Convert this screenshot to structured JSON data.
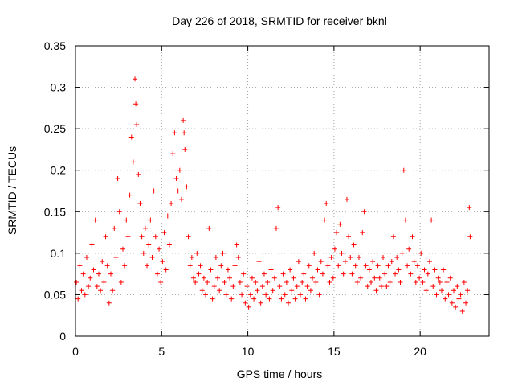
{
  "chart_data": {
    "type": "scatter",
    "title": "Day 226 of 2018, SRMTID for receiver bknl",
    "xlabel": "GPS time / hours",
    "ylabel": "SRMTID / TECUs",
    "xlim": [
      0,
      24
    ],
    "ylim": [
      0,
      0.35
    ],
    "xticks": [
      0,
      5,
      10,
      15,
      20
    ],
    "xtick_labels": [
      "0",
      "5",
      "10",
      "15",
      "20"
    ],
    "yticks": [
      0,
      0.05,
      0.1,
      0.15,
      0.2,
      0.25,
      0.3,
      0.35
    ],
    "ytick_labels": [
      "0",
      "0.05",
      "0.1",
      "0.15",
      "0.2",
      "0.25",
      "0.3",
      "0.35"
    ],
    "grid": true,
    "marker": "+",
    "marker_color": "#ff0000",
    "series": [
      {
        "name": "SRMTID",
        "points": [
          [
            0.05,
            0.065
          ],
          [
            0.15,
            0.045
          ],
          [
            0.25,
            0.085
          ],
          [
            0.35,
            0.055
          ],
          [
            0.45,
            0.075
          ],
          [
            0.55,
            0.05
          ],
          [
            0.65,
            0.095
          ],
          [
            0.75,
            0.06
          ],
          [
            0.85,
            0.07
          ],
          [
            0.95,
            0.11
          ],
          [
            1.05,
            0.08
          ],
          [
            1.15,
            0.14
          ],
          [
            1.25,
            0.06
          ],
          [
            1.35,
            0.075
          ],
          [
            1.45,
            0.055
          ],
          [
            1.55,
            0.09
          ],
          [
            1.65,
            0.065
          ],
          [
            1.75,
            0.12
          ],
          [
            1.85,
            0.085
          ],
          [
            1.95,
            0.04
          ],
          [
            2.05,
            0.075
          ],
          [
            2.15,
            0.055
          ],
          [
            2.25,
            0.13
          ],
          [
            2.35,
            0.095
          ],
          [
            2.45,
            0.19
          ],
          [
            2.55,
            0.15
          ],
          [
            2.65,
            0.065
          ],
          [
            2.75,
            0.105
          ],
          [
            2.85,
            0.085
          ],
          [
            2.95,
            0.14
          ],
          [
            3.05,
            0.12
          ],
          [
            3.15,
            0.17
          ],
          [
            3.25,
            0.24
          ],
          [
            3.35,
            0.21
          ],
          [
            3.45,
            0.31
          ],
          [
            3.5,
            0.28
          ],
          [
            3.55,
            0.255
          ],
          [
            3.65,
            0.195
          ],
          [
            3.75,
            0.16
          ],
          [
            3.85,
            0.12
          ],
          [
            3.95,
            0.1
          ],
          [
            4.05,
            0.13
          ],
          [
            4.15,
            0.085
          ],
          [
            4.25,
            0.11
          ],
          [
            4.35,
            0.14
          ],
          [
            4.45,
            0.095
          ],
          [
            4.55,
            0.175
          ],
          [
            4.65,
            0.12
          ],
          [
            4.75,
            0.075
          ],
          [
            4.85,
            0.105
          ],
          [
            4.95,
            0.065
          ],
          [
            5.05,
            0.09
          ],
          [
            5.15,
            0.125
          ],
          [
            5.25,
            0.08
          ],
          [
            5.35,
            0.145
          ],
          [
            5.45,
            0.11
          ],
          [
            5.55,
            0.16
          ],
          [
            5.65,
            0.22
          ],
          [
            5.75,
            0.245
          ],
          [
            5.85,
            0.19
          ],
          [
            5.95,
            0.175
          ],
          [
            6.05,
            0.2
          ],
          [
            6.15,
            0.165
          ],
          [
            6.25,
            0.26
          ],
          [
            6.3,
            0.245
          ],
          [
            6.35,
            0.225
          ],
          [
            6.45,
            0.18
          ],
          [
            6.55,
            0.12
          ],
          [
            6.65,
            0.085
          ],
          [
            6.75,
            0.095
          ],
          [
            6.85,
            0.07
          ],
          [
            6.95,
            0.065
          ],
          [
            7.05,
            0.1
          ],
          [
            7.15,
            0.075
          ],
          [
            7.25,
            0.085
          ],
          [
            7.35,
            0.055
          ],
          [
            7.45,
            0.07
          ],
          [
            7.55,
            0.05
          ],
          [
            7.65,
            0.065
          ],
          [
            7.75,
            0.13
          ],
          [
            7.85,
            0.08
          ],
          [
            7.95,
            0.045
          ],
          [
            8.05,
            0.06
          ],
          [
            8.15,
            0.095
          ],
          [
            8.25,
            0.07
          ],
          [
            8.35,
            0.055
          ],
          [
            8.45,
            0.085
          ],
          [
            8.55,
            0.1
          ],
          [
            8.65,
            0.065
          ],
          [
            8.75,
            0.05
          ],
          [
            8.85,
            0.08
          ],
          [
            8.95,
            0.07
          ],
          [
            9.05,
            0.045
          ],
          [
            9.15,
            0.06
          ],
          [
            9.25,
            0.085
          ],
          [
            9.35,
            0.11
          ],
          [
            9.45,
            0.095
          ],
          [
            9.55,
            0.065
          ],
          [
            9.65,
            0.05
          ],
          [
            9.75,
            0.075
          ],
          [
            9.85,
            0.04
          ],
          [
            9.95,
            0.06
          ],
          [
            10.05,
            0.035
          ],
          [
            10.15,
            0.05
          ],
          [
            10.25,
            0.07
          ],
          [
            10.35,
            0.045
          ],
          [
            10.45,
            0.065
          ],
          [
            10.55,
            0.055
          ],
          [
            10.65,
            0.09
          ],
          [
            10.75,
            0.04
          ],
          [
            10.85,
            0.06
          ],
          [
            10.95,
            0.075
          ],
          [
            11.05,
            0.05
          ],
          [
            11.15,
            0.065
          ],
          [
            11.25,
            0.045
          ],
          [
            11.35,
            0.08
          ],
          [
            11.45,
            0.055
          ],
          [
            11.55,
            0.07
          ],
          [
            11.65,
            0.13
          ],
          [
            11.75,
            0.155
          ],
          [
            11.85,
            0.06
          ],
          [
            11.95,
            0.045
          ],
          [
            12.05,
            0.075
          ],
          [
            12.15,
            0.05
          ],
          [
            12.25,
            0.065
          ],
          [
            12.35,
            0.04
          ],
          [
            12.45,
            0.08
          ],
          [
            12.55,
            0.055
          ],
          [
            12.65,
            0.07
          ],
          [
            12.75,
            0.045
          ],
          [
            12.85,
            0.06
          ],
          [
            12.95,
            0.09
          ],
          [
            13.05,
            0.05
          ],
          [
            13.15,
            0.065
          ],
          [
            13.25,
            0.075
          ],
          [
            13.35,
            0.045
          ],
          [
            13.45,
            0.06
          ],
          [
            13.55,
            0.085
          ],
          [
            13.65,
            0.055
          ],
          [
            13.75,
            0.07
          ],
          [
            13.85,
            0.1
          ],
          [
            13.95,
            0.065
          ],
          [
            14.05,
            0.08
          ],
          [
            14.15,
            0.05
          ],
          [
            14.25,
            0.09
          ],
          [
            14.35,
            0.075
          ],
          [
            14.45,
            0.14
          ],
          [
            14.55,
            0.16
          ],
          [
            14.65,
            0.085
          ],
          [
            14.75,
            0.065
          ],
          [
            14.85,
            0.095
          ],
          [
            14.95,
            0.07
          ],
          [
            15.05,
            0.105
          ],
          [
            15.15,
            0.125
          ],
          [
            15.25,
            0.085
          ],
          [
            15.35,
            0.135
          ],
          [
            15.45,
            0.1
          ],
          [
            15.55,
            0.075
          ],
          [
            15.65,
            0.09
          ],
          [
            15.75,
            0.165
          ],
          [
            15.85,
            0.12
          ],
          [
            15.95,
            0.095
          ],
          [
            16.05,
            0.075
          ],
          [
            16.15,
            0.11
          ],
          [
            16.25,
            0.085
          ],
          [
            16.35,
            0.065
          ],
          [
            16.45,
            0.095
          ],
          [
            16.55,
            0.07
          ],
          [
            16.65,
            0.125
          ],
          [
            16.75,
            0.15
          ],
          [
            16.85,
            0.085
          ],
          [
            16.95,
            0.06
          ],
          [
            17.05,
            0.08
          ],
          [
            17.15,
            0.065
          ],
          [
            17.25,
            0.09
          ],
          [
            17.35,
            0.07
          ],
          [
            17.45,
            0.055
          ],
          [
            17.55,
            0.085
          ],
          [
            17.65,
            0.07
          ],
          [
            17.75,
            0.06
          ],
          [
            17.85,
            0.095
          ],
          [
            17.95,
            0.075
          ],
          [
            18.05,
            0.06
          ],
          [
            18.15,
            0.085
          ],
          [
            18.25,
            0.065
          ],
          [
            18.35,
            0.09
          ],
          [
            18.45,
            0.12
          ],
          [
            18.55,
            0.075
          ],
          [
            18.65,
            0.095
          ],
          [
            18.75,
            0.08
          ],
          [
            18.85,
            0.065
          ],
          [
            18.95,
            0.1
          ],
          [
            19.05,
            0.2
          ],
          [
            19.15,
            0.14
          ],
          [
            19.25,
            0.085
          ],
          [
            19.35,
            0.105
          ],
          [
            19.45,
            0.075
          ],
          [
            19.55,
            0.12
          ],
          [
            19.65,
            0.09
          ],
          [
            19.75,
            0.065
          ],
          [
            19.85,
            0.085
          ],
          [
            19.95,
            0.07
          ],
          [
            20.05,
            0.1
          ],
          [
            20.15,
            0.065
          ],
          [
            20.25,
            0.08
          ],
          [
            20.35,
            0.055
          ],
          [
            20.45,
            0.075
          ],
          [
            20.55,
            0.09
          ],
          [
            20.65,
            0.14
          ],
          [
            20.75,
            0.06
          ],
          [
            20.85,
            0.08
          ],
          [
            20.95,
            0.05
          ],
          [
            21.05,
            0.07
          ],
          [
            21.15,
            0.065
          ],
          [
            21.25,
            0.055
          ],
          [
            21.35,
            0.08
          ],
          [
            21.45,
            0.045
          ],
          [
            21.55,
            0.065
          ],
          [
            21.65,
            0.05
          ],
          [
            21.75,
            0.07
          ],
          [
            21.85,
            0.04
          ],
          [
            21.95,
            0.055
          ],
          [
            22.05,
            0.035
          ],
          [
            22.15,
            0.06
          ],
          [
            22.25,
            0.045
          ],
          [
            22.35,
            0.05
          ],
          [
            22.45,
            0.03
          ],
          [
            22.55,
            0.065
          ],
          [
            22.65,
            0.04
          ],
          [
            22.75,
            0.055
          ],
          [
            22.85,
            0.155
          ],
          [
            22.9,
            0.12
          ]
        ]
      }
    ]
  }
}
